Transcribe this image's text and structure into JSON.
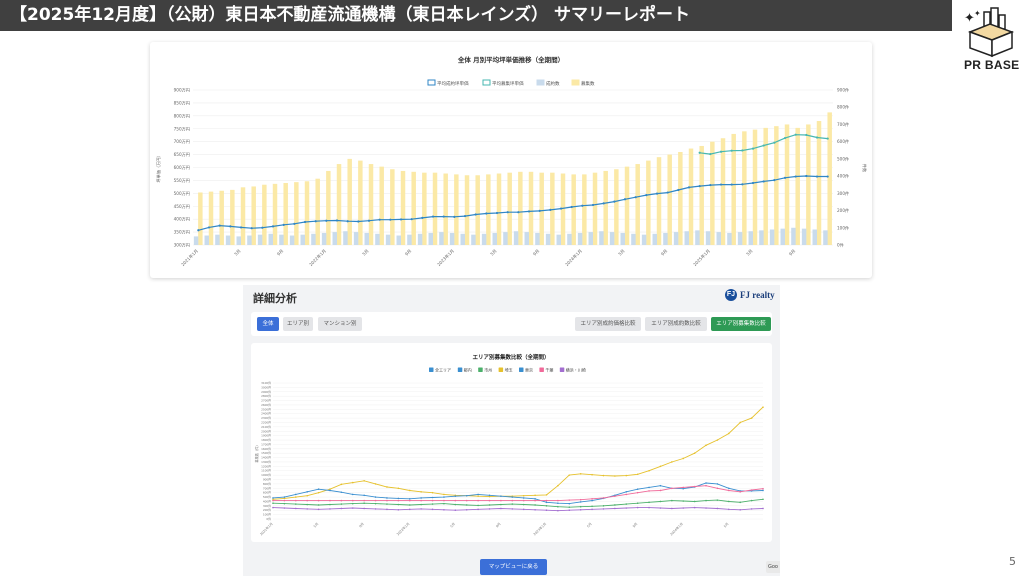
{
  "header": {
    "title": "【2025年12月度】（公財）東日本不動産流通機構（東日本レインズ） サマリーレポート"
  },
  "logo": {
    "text": "PR BASE",
    "icon": "house-box-icon"
  },
  "page_number": "5",
  "panel": {
    "title": "詳細分析",
    "brand": "FJ realty",
    "tabs_left": [
      "全体",
      "エリア別",
      "マンション別"
    ],
    "tabs_right": [
      "エリア別成約価格比較",
      "エリア別成約数比較",
      "エリア別募集数比較"
    ],
    "active_left": "全体",
    "active_right": "エリア別募集数比較",
    "map_button": "マップビューに戻る",
    "corner_button": "Goo"
  },
  "colors": {
    "bar_sold": "#c9dbec",
    "bar_listed": "#fbe9a6",
    "line_sold": "#2f86c6",
    "line_listed": "#47b7b1",
    "accent_blue": "#3b6fd8",
    "accent_green": "#2e9a55"
  },
  "chart_data": [
    {
      "type": "bar",
      "title": "全体 月別平均坪単価推移（全期間）",
      "ylabel": "坪単価（万円）",
      "y2label": "件数",
      "left_ticks": [
        "300万円",
        "350万円",
        "400万円",
        "450万円",
        "500万円",
        "550万円",
        "600万円",
        "650万円",
        "700万円",
        "750万円",
        "800万円",
        "850万円",
        "900万円"
      ],
      "right_ticks": [
        "0件",
        "100件",
        "200件",
        "300件",
        "400件",
        "500件",
        "600件",
        "700件",
        "800件",
        "900件"
      ],
      "ylim": [
        300,
        900
      ],
      "y2lim": [
        0,
        900
      ],
      "x_tick_labels": [
        "2021年1月",
        "",
        "5月",
        "",
        "9月",
        "",
        "2022年1月",
        "",
        "5月",
        "",
        "9月",
        "",
        "2023年1月",
        "",
        "5月",
        "",
        "9月",
        "",
        "2024年1月",
        "",
        "5月",
        "",
        "9月",
        "",
        "2025年1月",
        "",
        "5月",
        "",
        "9月",
        ""
      ],
      "legend": [
        "平均成約坪単価",
        "平均募集坪単価",
        "成約数",
        "募集数"
      ],
      "legend_position": "top",
      "n": 60,
      "listed_counts": [
        305,
        310,
        315,
        320,
        335,
        340,
        350,
        355,
        360,
        365,
        370,
        385,
        430,
        470,
        500,
        490,
        470,
        455,
        440,
        430,
        425,
        420,
        420,
        415,
        410,
        405,
        405,
        410,
        415,
        420,
        425,
        425,
        420,
        420,
        415,
        410,
        410,
        420,
        430,
        440,
        455,
        470,
        490,
        510,
        525,
        540,
        560,
        575,
        600,
        620,
        645,
        660,
        670,
        680,
        690,
        700,
        680,
        700,
        720,
        770
      ],
      "sold_counts": [
        50,
        55,
        60,
        55,
        50,
        55,
        60,
        65,
        60,
        55,
        60,
        65,
        70,
        75,
        80,
        75,
        70,
        65,
        60,
        55,
        60,
        65,
        70,
        75,
        70,
        65,
        60,
        65,
        70,
        75,
        80,
        75,
        70,
        65,
        60,
        65,
        70,
        75,
        80,
        75,
        70,
        65,
        60,
        65,
        70,
        75,
        80,
        85,
        80,
        75,
        70,
        75,
        80,
        85,
        90,
        95,
        100,
        95,
        90,
        85
      ],
      "sold_unit_price": [
        357,
        368,
        375,
        372,
        368,
        365,
        367,
        372,
        378,
        382,
        389,
        392,
        394,
        395,
        392,
        391,
        394,
        398,
        398,
        399,
        400,
        405,
        410,
        410,
        409,
        412,
        418,
        422,
        424,
        427,
        427,
        430,
        432,
        436,
        441,
        447,
        452,
        455,
        461,
        468,
        477,
        485,
        493,
        499,
        503,
        513,
        523,
        528,
        532,
        534,
        534,
        535,
        540,
        546,
        551,
        560,
        565,
        567,
        565,
        565
      ],
      "listed_unit_price_start_index": 47,
      "listed_unit_price": [
        657,
        652,
        661,
        665,
        666,
        673,
        685,
        696,
        714,
        727,
        726,
        716,
        712
      ]
    },
    {
      "type": "line",
      "title": "エリア別募集数比較（全期間）",
      "ylabel": "募集数（件）",
      "legend": [
        "全エリア",
        "都内",
        "市州",
        "埼玉",
        "東京",
        "千葉",
        "横浜・川崎"
      ],
      "legend_position": "top",
      "y_ticks": [
        "0件",
        "100件",
        "200件",
        "300件",
        "400件",
        "500件",
        "600件",
        "700件",
        "800件",
        "900件",
        "1000件",
        "1100件",
        "1200件",
        "1300件",
        "1400件",
        "1500件",
        "1600件",
        "1700件",
        "1800件",
        "1900件",
        "2000件",
        "2100件",
        "2200件",
        "2300件",
        "2400件",
        "2500件",
        "2600件",
        "2700件",
        "2800件",
        "2900件",
        "3000件",
        "3100件"
      ],
      "ylim": [
        0,
        3100
      ],
      "x_tick_labels": [
        "2021年1月",
        "",
        "5月",
        "",
        "9月",
        "",
        "2022年1月",
        "",
        "5月",
        "",
        "9月",
        "",
        "2023年1月",
        "",
        "5月",
        "",
        "9月",
        "",
        "2024年1月",
        "",
        "5月",
        ""
      ],
      "n": 44,
      "series": [
        {
          "name": "東京",
          "color": "#e6c12c",
          "values": [
            450,
            470,
            500,
            530,
            600,
            680,
            790,
            830,
            870,
            800,
            730,
            700,
            650,
            620,
            600,
            560,
            540,
            530,
            520,
            510,
            520,
            520,
            530,
            540,
            550,
            760,
            1000,
            1030,
            1010,
            990,
            980,
            990,
            1020,
            1100,
            1200,
            1300,
            1380,
            1500,
            1680,
            1800,
            1950,
            2200,
            2300,
            2550
          ]
        },
        {
          "name": "都内",
          "color": "#3a8fd0",
          "values": [
            480,
            500,
            560,
            620,
            680,
            650,
            610,
            560,
            540,
            500,
            480,
            470,
            460,
            480,
            490,
            500,
            520,
            530,
            560,
            540,
            520,
            500,
            480,
            460,
            380,
            360,
            350,
            390,
            420,
            470,
            540,
            620,
            680,
            720,
            760,
            700,
            690,
            730,
            820,
            800,
            700,
            640,
            640,
            650
          ]
        },
        {
          "name": "市州",
          "color": "#4cb06b",
          "values": [
            360,
            350,
            340,
            330,
            320,
            330,
            340,
            350,
            360,
            350,
            340,
            330,
            320,
            330,
            340,
            350,
            330,
            320,
            310,
            320,
            330,
            340,
            330,
            320,
            300,
            280,
            270,
            280,
            290,
            300,
            320,
            340,
            360,
            380,
            400,
            420,
            410,
            400,
            420,
            430,
            400,
            380,
            420,
            450
          ]
        },
        {
          "name": "千葉",
          "color": "#f06a9a",
          "values": [
            420,
            420,
            420,
            420,
            420,
            420,
            420,
            420,
            420,
            420,
            420,
            420,
            420,
            420,
            420,
            420,
            420,
            420,
            420,
            420,
            420,
            420,
            420,
            420,
            420,
            420,
            430,
            440,
            460,
            480,
            520,
            560,
            600,
            640,
            650,
            700,
            720,
            740,
            760,
            700,
            650,
            620,
            660,
            690
          ]
        },
        {
          "name": "横浜・川崎",
          "color": "#a36ed0",
          "values": [
            260,
            250,
            240,
            230,
            220,
            230,
            240,
            250,
            240,
            230,
            220,
            210,
            220,
            230,
            220,
            210,
            200,
            210,
            220,
            230,
            240,
            230,
            220,
            210,
            200,
            190,
            200,
            210,
            220,
            230,
            240,
            250,
            260,
            260,
            250,
            240,
            250,
            260,
            250,
            240,
            220,
            210,
            230,
            240
          ]
        }
      ]
    }
  ]
}
